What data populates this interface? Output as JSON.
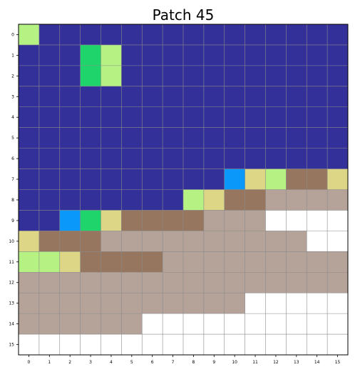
{
  "chart_data": {
    "type": "heatmap",
    "title": "Patch 45",
    "xlabel": "",
    "ylabel": "",
    "x_ticks": [
      "0",
      "1",
      "2",
      "3",
      "4",
      "5",
      "6",
      "7",
      "8",
      "9",
      "10",
      "11",
      "12",
      "13",
      "14",
      "15"
    ],
    "y_ticks": [
      "0",
      "1",
      "2",
      "3",
      "4",
      "5",
      "6",
      "7",
      "8",
      "9",
      "10",
      "11",
      "12",
      "13",
      "14",
      "15"
    ],
    "grid": true,
    "palette": {
      "D": "#34309a",
      "G": "#1fd56b",
      "L": "#b6f283",
      "B": "#0a99fa",
      "Y": "#ddd686",
      "M": "#96765e",
      "T": "#b5a39a",
      "W": "#ffffff"
    },
    "grid_color": "#8a8a8a",
    "cells": [
      "LDDDDDDDDDDDDDDD",
      "DDDGLDDDDDDDDDDD",
      "DDDGLDDDDDDDDDDD",
      "DDDDDDDDDDDDDDDD",
      "DDDDDDDDDDDDDDDD",
      "DDDDDDDDDDDDDDDD",
      "DDDDDDDDDDDDDDDD",
      "DDDDDDDDDDBYLMMY",
      "DDDDDDDDLYMMTTTT",
      "DDBGYMMMMTTTWWWW",
      "YMMMTTTTTTTTTTWW",
      "LLYMMMMTTTTTTTTT",
      "TTTTTTTTTTTTTTTT",
      "TTTTTTTTTTTWWWWW",
      "TTTTTTWWWWWWWWWW",
      "WWWWWWWWWWWWWWWW"
    ]
  }
}
